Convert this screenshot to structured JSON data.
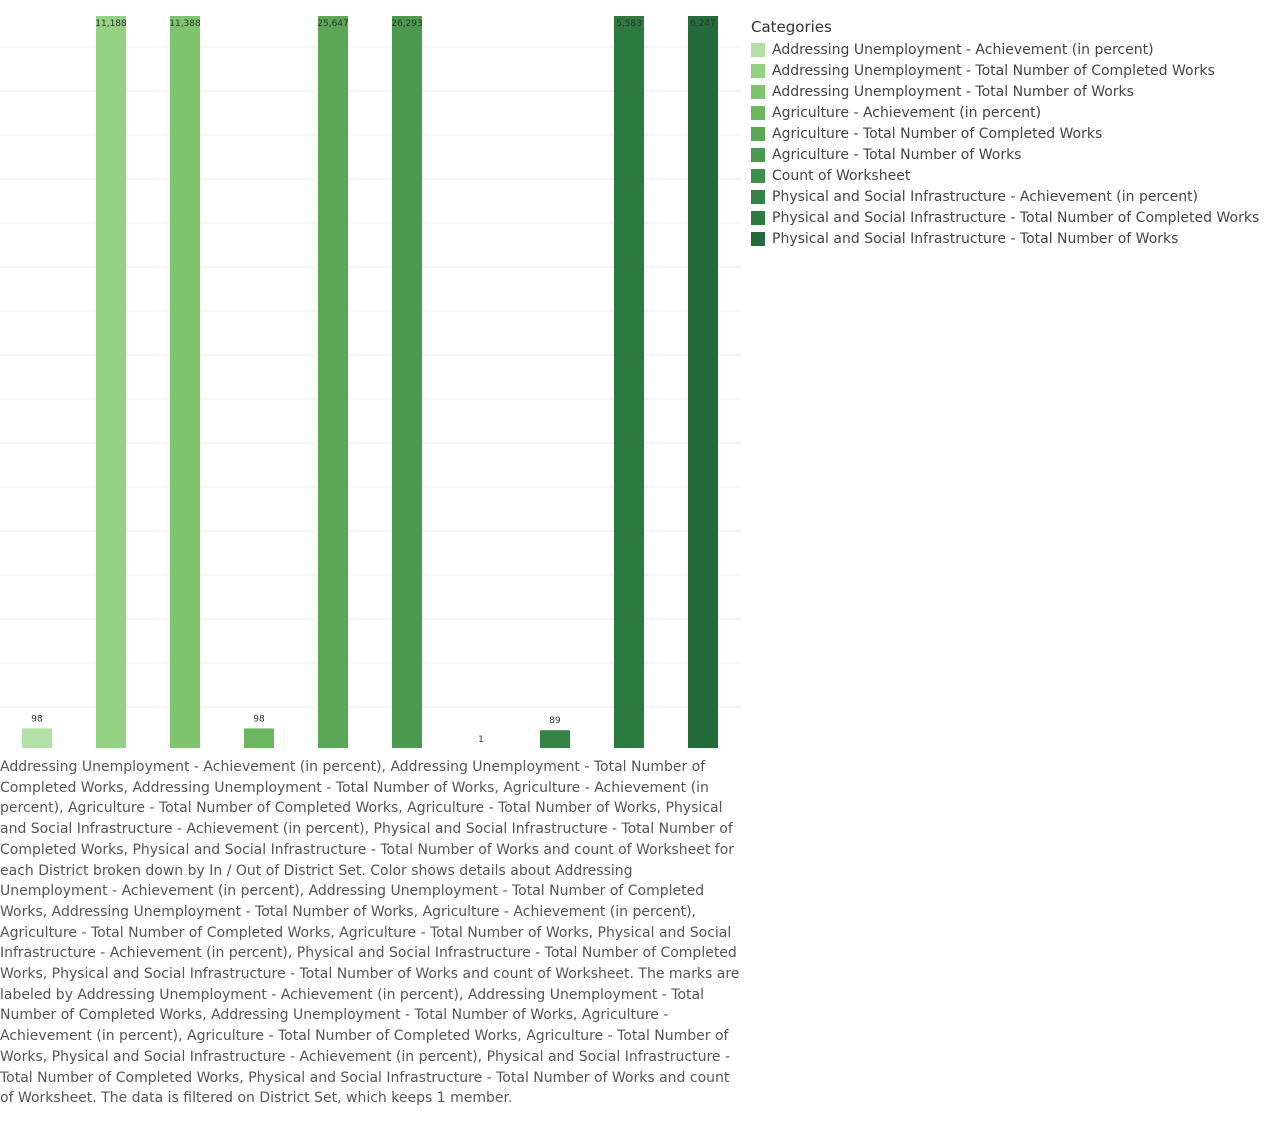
{
  "chart_data": {
    "type": "bar",
    "categories": [
      "Addressing Unemployment - Achievement (in percent)",
      "Addressing Unemployment - Total Number of Completed Works",
      "Addressing Unemployment - Total Number of Works",
      "Agriculture - Achievement (in percent)",
      "Agriculture - Total Number of Completed Works",
      "Agriculture - Total Number of Works",
      "Count of Worksheet",
      "Physical and Social Infrastructure - Achievement (in percent)",
      "Physical and Social Infrastructure - Total Number of Completed Works",
      "Physical and Social Infrastructure - Total Number of Works"
    ],
    "values": [
      98,
      11188,
      11388,
      98,
      25647,
      26293,
      1,
      89,
      5583,
      6247
    ],
    "value_labels": [
      "98",
      "11,188",
      "11,388",
      "98",
      "25,647",
      "26,293",
      "1",
      "89",
      "5,583",
      "6,247"
    ],
    "colors": [
      "#b3e0a6",
      "#92d282",
      "#7fc46f",
      "#6cb65f",
      "#5aa755",
      "#4b9a4f",
      "#3f8d4b",
      "#358245",
      "#2c7a40",
      "#246b3a"
    ],
    "independent_axes": true,
    "grid": true,
    "legend": {
      "title": "Categories",
      "position": "right"
    }
  },
  "caption": "Addressing Unemployment - Achievement (in percent), Addressing Unemployment - Total Number of Completed Works, Addressing Unemployment - Total Number of Works, Agriculture - Achievement (in percent), Agriculture - Total Number of Completed Works, Agriculture - Total Number of Works, Physical and Social Infrastructure - Achievement (in percent), Physical and Social Infrastructure - Total Number of Completed Works, Physical and Social Infrastructure - Total Number of Works and count of Worksheet for each District broken down by In / Out of District Set.  Color shows details about Addressing Unemployment - Achievement (in percent), Addressing Unemployment - Total Number of Completed Works, Addressing Unemployment - Total Number of Works, Agriculture - Achievement (in percent), Agriculture - Total Number of Completed Works, Agriculture - Total Number of Works, Physical and Social Infrastructure - Achievement (in percent), Physical and Social Infrastructure - Total Number of Completed Works, Physical and Social Infrastructure - Total Number of Works and count of Worksheet.  The marks are labeled by Addressing Unemployment - Achievement (in percent), Addressing Unemployment - Total Number of Completed Works, Addressing Unemployment - Total Number of Works, Agriculture - Achievement (in percent), Agriculture - Total Number of Completed Works, Agriculture - Total Number of Works, Physical and Social Infrastructure - Achievement (in percent), Physical and Social Infrastructure - Total Number of Completed Works, Physical and Social Infrastructure - Total Number of Works and count of Worksheet. The data is filtered on District Set, which keeps 1 member."
}
